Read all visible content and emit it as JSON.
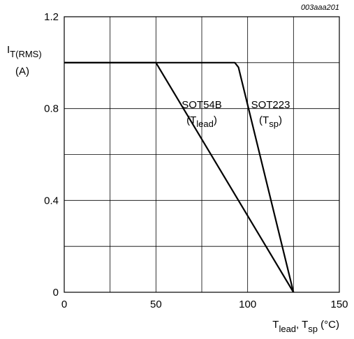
{
  "figure_id": "003aaa201",
  "chart_data": {
    "type": "line",
    "title": "",
    "xlabel": {
      "parts": [
        {
          "text": "T",
          "sub": false
        },
        {
          "text": "lead",
          "sub": true
        },
        {
          "text": ", T",
          "sub": false
        },
        {
          "text": "sp",
          "sub": true
        },
        {
          "text": " (°C)",
          "sub": false
        }
      ]
    },
    "ylabel": {
      "line1_parts": [
        {
          "text": "I",
          "sub": false
        },
        {
          "text": "T(RMS)",
          "sub": true
        }
      ],
      "line2": "(A)"
    },
    "xlim": [
      0,
      150
    ],
    "ylim": [
      0,
      1.2
    ],
    "x_ticks": [
      0,
      50,
      100,
      150
    ],
    "x_tick_labels": [
      "0",
      "50",
      "100",
      "150"
    ],
    "y_ticks": [
      0,
      0.4,
      0.8,
      1.2
    ],
    "y_tick_labels": [
      "0",
      "0.4",
      "0.8",
      "1.2"
    ],
    "x_gridlines": [
      25,
      50,
      75,
      100,
      125
    ],
    "y_gridlines": [
      0.2,
      0.4,
      0.6,
      0.8,
      1.0
    ],
    "grid": true,
    "series": [
      {
        "name": "SOT54B",
        "points": [
          [
            0,
            1.0
          ],
          [
            50,
            1.0
          ],
          [
            125,
            0
          ]
        ]
      },
      {
        "name": "SOT223",
        "points": [
          [
            0,
            1.0
          ],
          [
            93,
            1.0
          ],
          [
            95,
            0.98
          ],
          [
            125,
            0
          ]
        ]
      }
    ],
    "annotations": [
      {
        "series": "SOT54B",
        "x": 75,
        "y": 0.735,
        "line1": "SOT54B",
        "line2_parts": [
          {
            "text": "(T",
            "sub": false
          },
          {
            "text": "lead",
            "sub": true
          },
          {
            "text": ")",
            "sub": false
          }
        ]
      },
      {
        "series": "SOT223",
        "x": 112.5,
        "y": 0.735,
        "line1": "SOT223",
        "line2_parts": [
          {
            "text": "(T",
            "sub": false
          },
          {
            "text": "sp",
            "sub": true
          },
          {
            "text": ")",
            "sub": false
          }
        ]
      }
    ]
  }
}
